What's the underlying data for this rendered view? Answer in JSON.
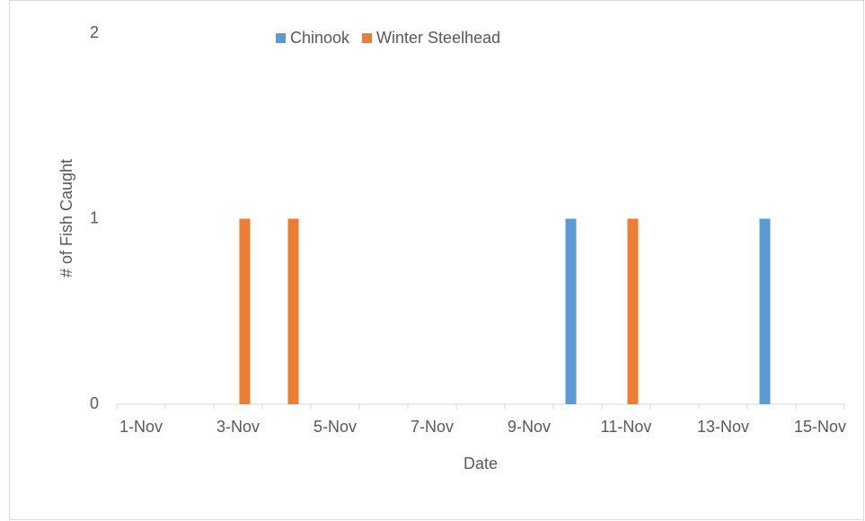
{
  "chart_data": {
    "type": "bar",
    "x_label": "Date",
    "y_label": "# of Fish Caught",
    "categories": [
      "1-Nov",
      null,
      "3-Nov",
      null,
      "5-Nov",
      null,
      "7-Nov",
      null,
      "9-Nov",
      null,
      "11-Nov",
      null,
      "13-Nov",
      null,
      "15-Nov"
    ],
    "series": [
      {
        "name": "Chinook",
        "color": "#5b9bd5",
        "values": [
          0,
          0,
          0,
          0,
          0,
          0,
          0,
          0,
          0,
          1,
          0,
          0,
          0,
          1,
          0
        ]
      },
      {
        "name": "Winter Steelhead",
        "color": "#ed7d31",
        "values": [
          0,
          0,
          1,
          1,
          0,
          0,
          0,
          0,
          0,
          0,
          1,
          0,
          0,
          0,
          0
        ]
      }
    ],
    "ylim": [
      0,
      2
    ],
    "yticks": [
      0,
      1,
      2
    ],
    "grid": false,
    "legend": "top"
  }
}
